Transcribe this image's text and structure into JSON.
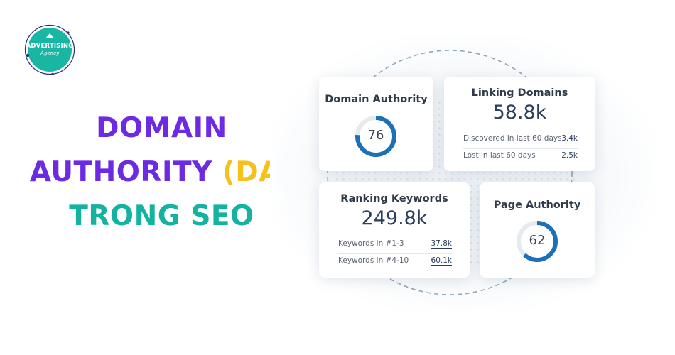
{
  "logo": {
    "text": "ADVERTISING",
    "subtext": "Agency",
    "color": "#19b6a4"
  },
  "headline": {
    "line1": "DOMAIN",
    "line2_main": "AUTHORITY",
    "line2_accent": "(DA)",
    "line3": "TRONG SEO",
    "colors": {
      "purple": "#6c2be3",
      "yellow": "#f4c21a",
      "teal": "#14b2a0"
    }
  },
  "cards": {
    "domain_authority": {
      "title": "Domain Authority",
      "value": "76",
      "gauge_fraction": 0.76
    },
    "linking_domains": {
      "title": "Linking Domains",
      "value": "58.8k",
      "rows": [
        {
          "label": "Discovered in last 60 days",
          "value": "3.4k"
        },
        {
          "label": "Lost in last 60 days",
          "value": "2.5k"
        }
      ]
    },
    "ranking_keywords": {
      "title": "Ranking Keywords",
      "value": "249.8k",
      "rows": [
        {
          "label": "Keywords in #1-3",
          "value": "37.8k"
        },
        {
          "label": "Keywords in #4-10",
          "value": "60.1k"
        }
      ]
    },
    "page_authority": {
      "title": "Page Authority",
      "value": "62",
      "gauge_fraction": 0.62
    }
  },
  "gauge_colors": {
    "fill": "#1d6fb8",
    "track": "#e6e9ed"
  }
}
